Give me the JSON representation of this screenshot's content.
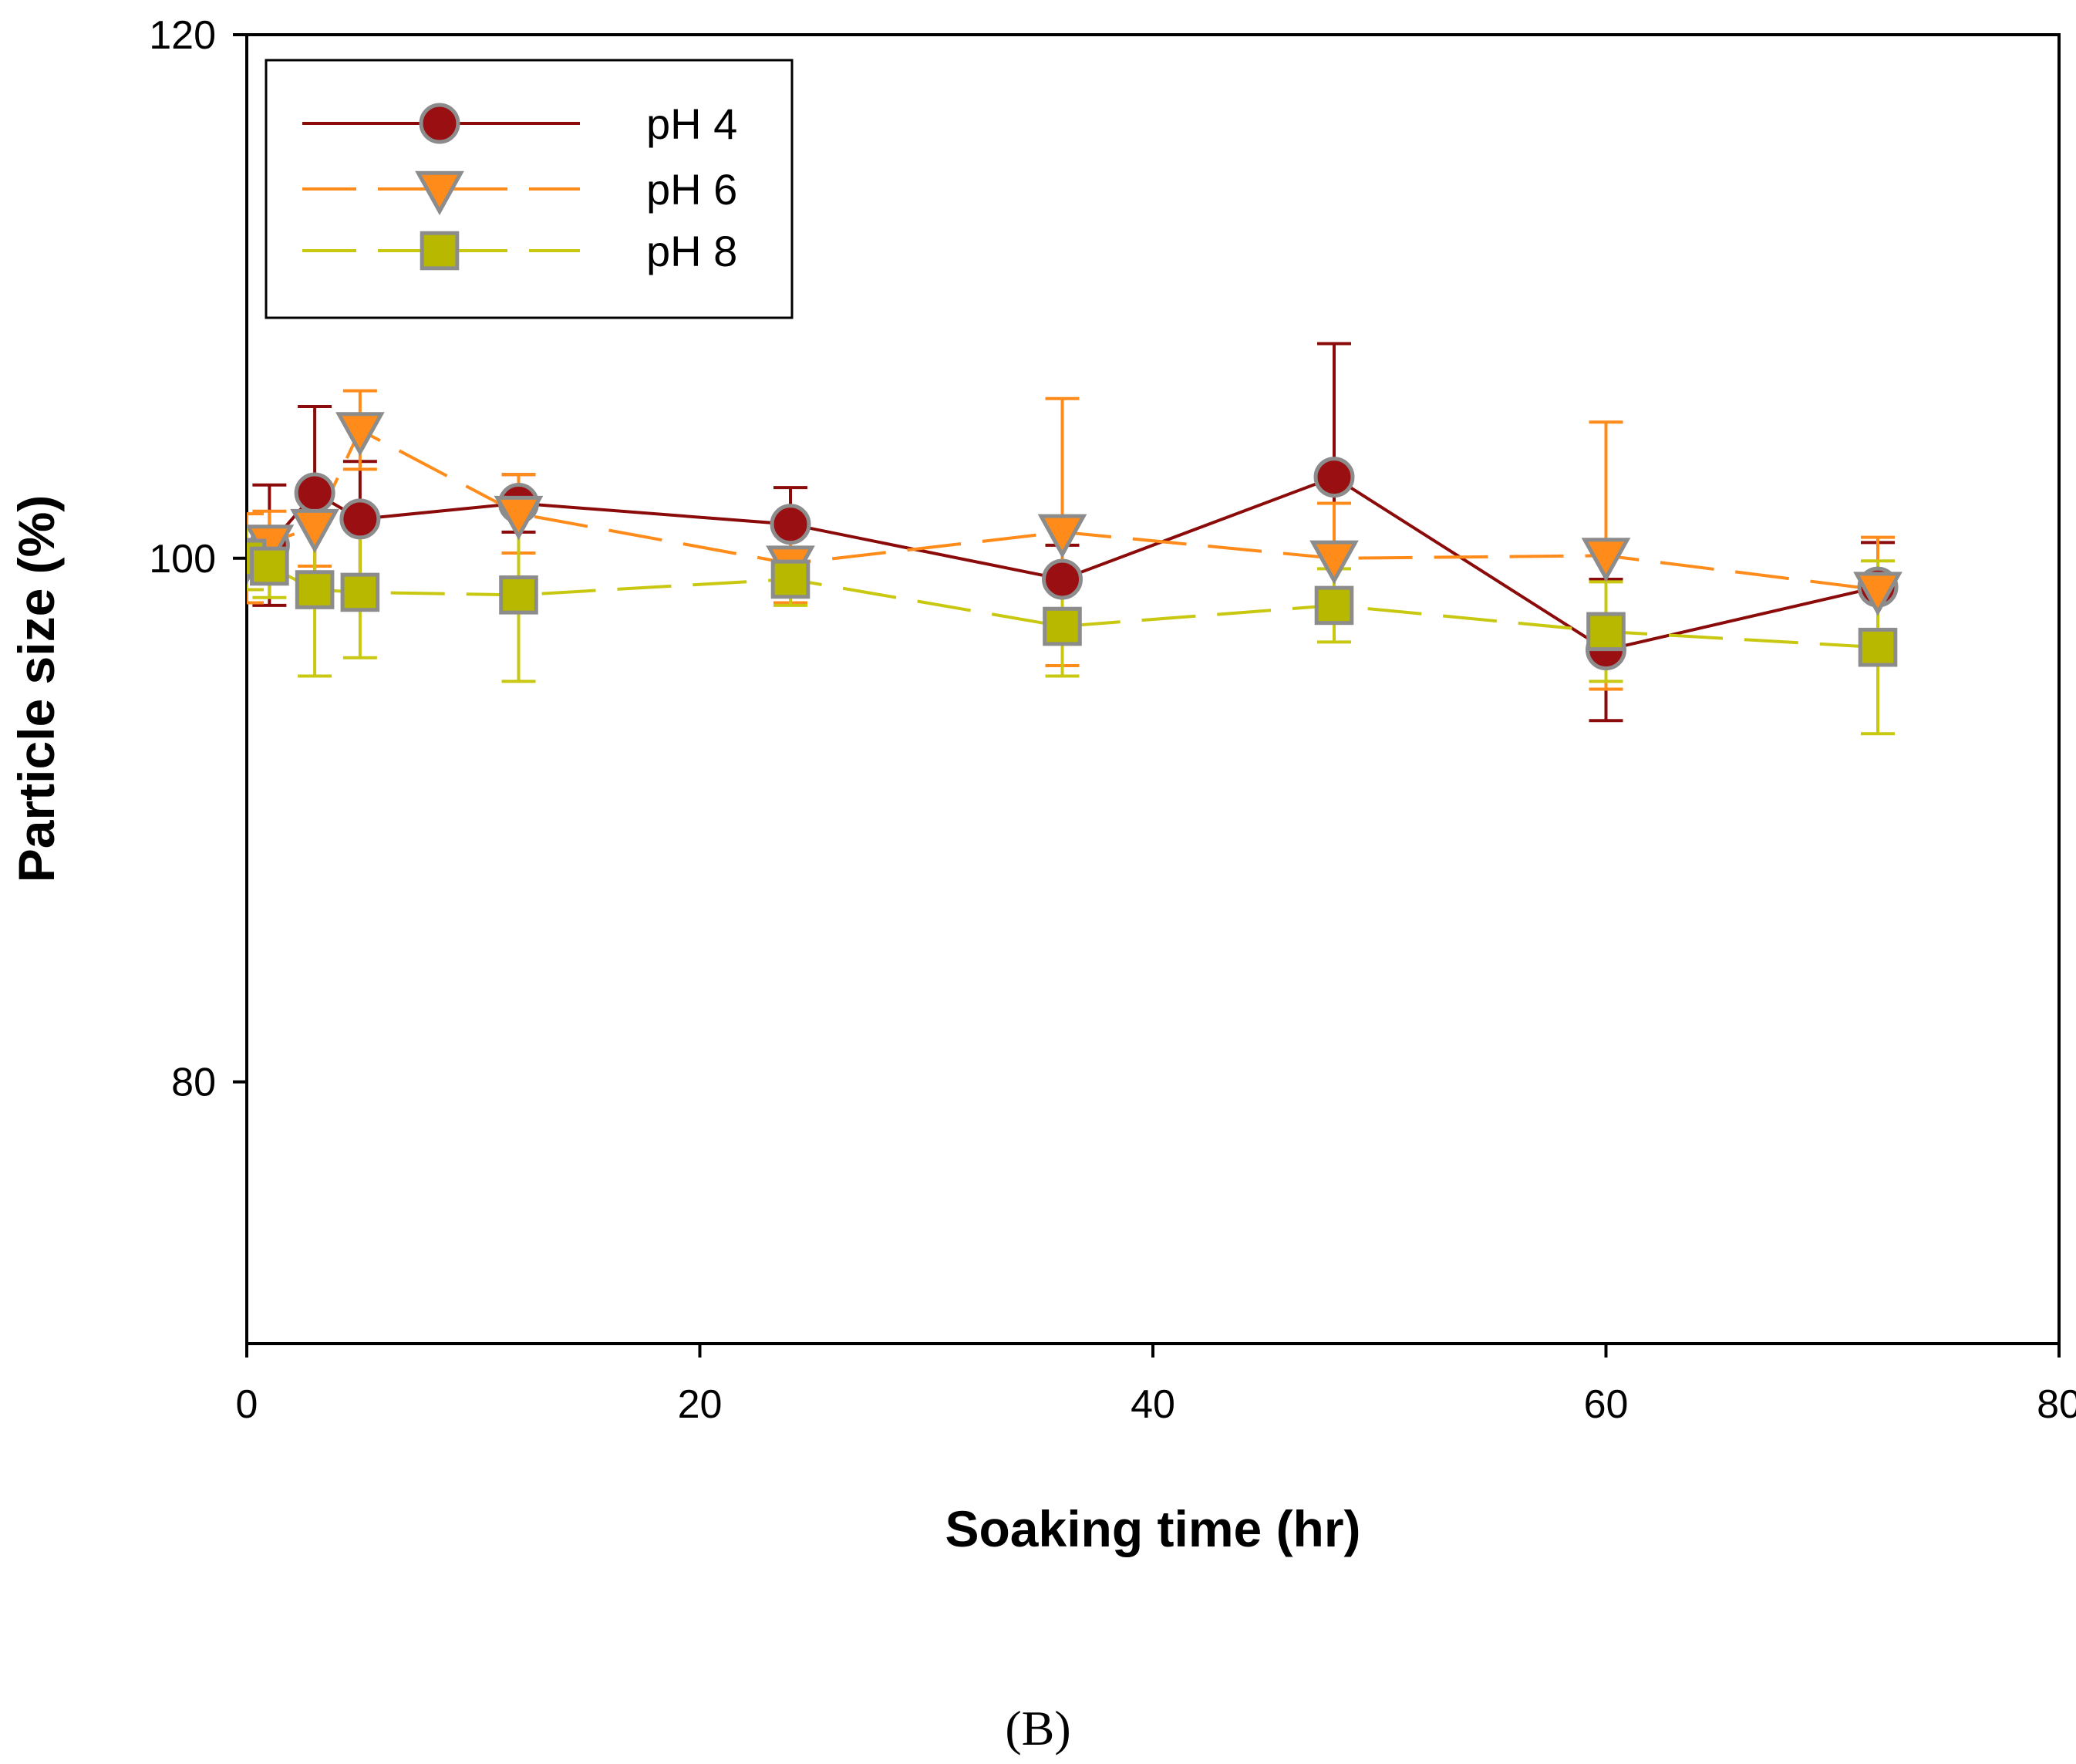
{
  "chart_data": {
    "type": "line",
    "title": "",
    "xlabel": "Soaking time (hr)",
    "ylabel": "Particle size (%)",
    "xlim": [
      0,
      80
    ],
    "ylim": [
      70,
      120
    ],
    "xticks": [
      0,
      20,
      40,
      60,
      80
    ],
    "xtick_labels": [
      "0",
      "20",
      "40",
      "60",
      "80"
    ],
    "yticks": [
      80,
      100,
      120
    ],
    "ytick_labels": [
      "80",
      "100",
      "120"
    ],
    "grid": false,
    "legend_position": "top-left",
    "x": [
      0,
      1,
      3,
      5,
      12,
      24,
      36,
      48,
      60,
      72
    ],
    "series": [
      {
        "name": "pH 4",
        "marker": "circle",
        "line_style": "solid",
        "color": "#8b0a0a",
        "marker_fill": "#9a0f12",
        "errorbar_color": "#8b0a0a",
        "values": [
          100,
          100.5,
          102.5,
          101.5,
          102.1,
          101.3,
          99.2,
          103.1,
          96.5,
          98.9
        ],
        "errors": [
          0.5,
          2.3,
          3.3,
          2.2,
          1.1,
          1.4,
          1.3,
          5.1,
          2.7,
          1.7
        ]
      },
      {
        "name": "pH 6",
        "marker": "triangle-down",
        "line_style": "dashed",
        "color": "#ff8c1a",
        "marker_fill": "#ff8c1a",
        "errorbar_color": "#ff8c1a",
        "values": [
          100,
          100.6,
          101.2,
          104.9,
          101.7,
          99.8,
          101.0,
          100.0,
          100.1,
          98.8
        ],
        "errors": [
          1.7,
          1.2,
          1.5,
          1.5,
          1.5,
          1.5,
          5.1,
          2.1,
          5.1,
          2.0
        ]
      },
      {
        "name": "pH 8",
        "marker": "square",
        "line_style": "dashed",
        "color": "#c8c810",
        "marker_fill": "#b8b800",
        "errorbar_color": "#c8c810",
        "values": [
          100,
          99.7,
          98.8,
          98.7,
          98.6,
          99.2,
          97.4,
          98.2,
          97.2,
          96.6
        ],
        "errors": [
          1.2,
          1.2,
          3.3,
          2.5,
          3.3,
          1.0,
          1.9,
          1.4,
          1.9,
          3.3
        ]
      }
    ]
  },
  "panel_label": "(B)"
}
